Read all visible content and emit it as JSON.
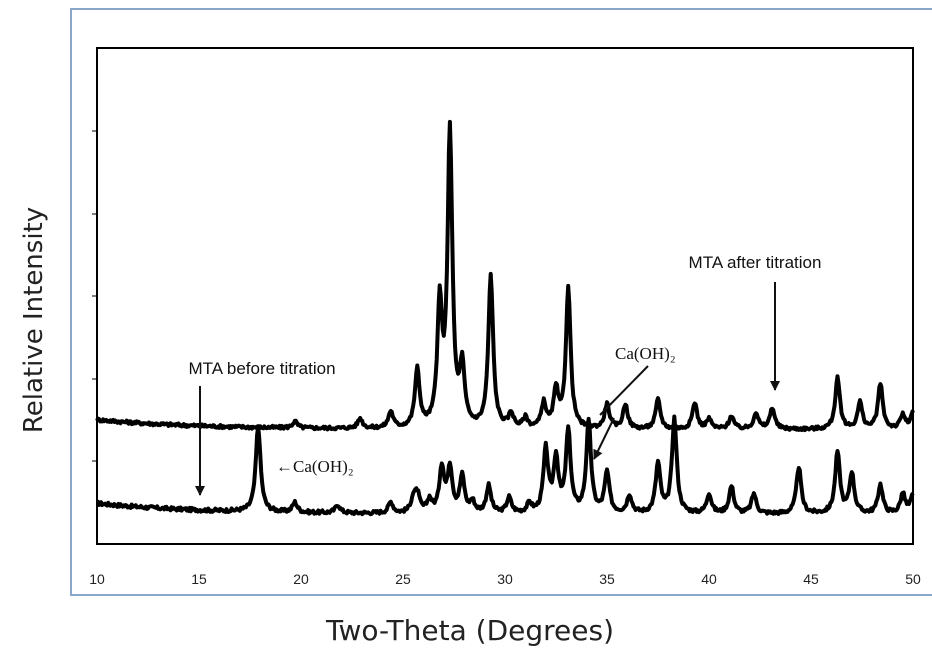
{
  "chart_data": {
    "type": "line",
    "xlabel": "Two-Theta (Degrees)",
    "ylabel": "Relative Intensity",
    "xlim": [
      10,
      50
    ],
    "xticks": [
      10,
      15,
      20,
      25,
      30,
      35,
      40,
      45,
      50
    ],
    "yticks_labeled": false,
    "grid": false,
    "annotations": [
      {
        "text": "MTA before titration"
      },
      {
        "text": "MTA after titration"
      },
      {
        "text": "←Ca(OH)₂"
      },
      {
        "text": "Ca(OH)₂"
      }
    ],
    "series": [
      {
        "baseline": 0.11,
        "peaks": [
          [
            17.9,
            0.95
          ],
          [
            19.7,
            0.11
          ],
          [
            21.8,
            0.09
          ],
          [
            24.4,
            0.12
          ],
          [
            25.5,
            0.15
          ],
          [
            25.7,
            0.2
          ],
          [
            26.3,
            0.14
          ],
          [
            26.9,
            0.5
          ],
          [
            27.3,
            0.5
          ],
          [
            27.9,
            0.4
          ],
          [
            28.4,
            0.12
          ],
          [
            29.2,
            0.3
          ],
          [
            30.2,
            0.17
          ],
          [
            31.2,
            0.1
          ],
          [
            32.0,
            0.7
          ],
          [
            32.5,
            0.6
          ],
          [
            33.1,
            0.9
          ],
          [
            34.1,
            1.0
          ],
          [
            35.0,
            0.45
          ],
          [
            36.1,
            0.2
          ],
          [
            37.5,
            0.55
          ],
          [
            38.3,
            1.05
          ],
          [
            40.0,
            0.22
          ],
          [
            41.1,
            0.3
          ],
          [
            42.2,
            0.22
          ],
          [
            44.4,
            0.52
          ],
          [
            46.3,
            0.68
          ],
          [
            47.0,
            0.45
          ],
          [
            48.4,
            0.32
          ],
          [
            49.5,
            0.22
          ],
          [
            50.0,
            0.2
          ]
        ]
      },
      {
        "baseline": 0.14,
        "peaks": [
          [
            19.7,
            0.08
          ],
          [
            22.9,
            0.12
          ],
          [
            24.4,
            0.2
          ],
          [
            25.7,
            0.7
          ],
          [
            26.8,
            1.45
          ],
          [
            27.3,
            3.6
          ],
          [
            27.9,
            0.7
          ],
          [
            29.3,
            1.85
          ],
          [
            30.3,
            0.17
          ],
          [
            31.0,
            0.12
          ],
          [
            31.9,
            0.3
          ],
          [
            32.5,
            0.45
          ],
          [
            33.1,
            1.7
          ],
          [
            35.0,
            0.3
          ],
          [
            35.9,
            0.3
          ],
          [
            37.5,
            0.36
          ],
          [
            39.3,
            0.32
          ],
          [
            40.0,
            0.12
          ],
          [
            41.1,
            0.16
          ],
          [
            42.3,
            0.2
          ],
          [
            43.1,
            0.26
          ],
          [
            46.3,
            0.62
          ],
          [
            47.4,
            0.32
          ],
          [
            48.4,
            0.55
          ],
          [
            49.5,
            0.17
          ],
          [
            50.0,
            0.2
          ]
        ]
      }
    ]
  }
}
